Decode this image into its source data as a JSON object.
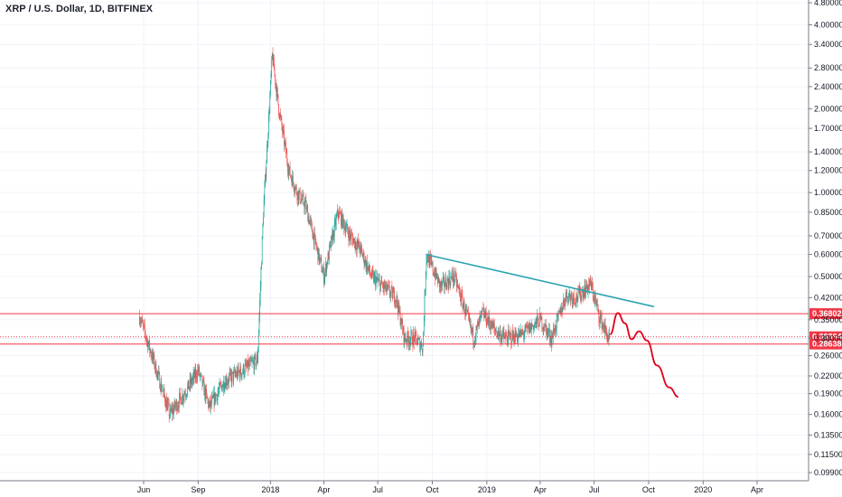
{
  "chart_data": {
    "type": "candlestick",
    "title": "XRP / U.S. Dollar, 1D, BITFINEX",
    "y_scale": "log",
    "y_ticks": [
      "4.80000",
      "4.00000",
      "3.40000",
      "2.80000",
      "2.40000",
      "2.00000",
      "1.70000",
      "1.40000",
      "1.20000",
      "1.00000",
      "0.85000",
      "0.70000",
      "0.60000",
      "0.50000",
      "0.42000",
      "0.35000",
      "0.30000",
      "0.26000",
      "0.22000",
      "0.19000",
      "0.16000",
      "0.13500",
      "0.11500",
      "0.09900"
    ],
    "x_ticks": [
      "Jun",
      "Sep",
      "2018",
      "Apr",
      "Jul",
      "Oct",
      "2019",
      "Apr",
      "Jul",
      "Oct",
      "2020",
      "Apr"
    ],
    "price_levels": [
      {
        "label": "0.36802",
        "value": 0.36802,
        "color": "#f23645"
      },
      {
        "label": "0.30394",
        "value": 0.30394,
        "color": "#f23645"
      },
      {
        "label": "0.28638",
        "value": 0.28638,
        "color": "#f23645"
      }
    ],
    "trendline": {
      "from": [
        "2018-09-20",
        0.6
      ],
      "to": [
        "2019-10-10",
        0.39
      ],
      "color": "#2aa3b0"
    },
    "projection_color": "#e0001b",
    "colors": {
      "up": "#26a69a",
      "down": "#ef5350"
    },
    "monthly_prices": [
      [
        "2017-05-25",
        0.36
      ],
      [
        "2017-06-15",
        0.26
      ],
      [
        "2017-07-15",
        0.16
      ],
      [
        "2017-08-15",
        0.2
      ],
      [
        "2017-09-01",
        0.23
      ],
      [
        "2017-09-20",
        0.17
      ],
      [
        "2017-10-15",
        0.21
      ],
      [
        "2017-11-15",
        0.23
      ],
      [
        "2017-12-10",
        0.25
      ],
      [
        "2017-12-20",
        0.85
      ],
      [
        "2018-01-04",
        3.1
      ],
      [
        "2018-01-15",
        2.0
      ],
      [
        "2018-02-01",
        1.2
      ],
      [
        "2018-02-15",
        1.0
      ],
      [
        "2018-03-01",
        0.9
      ],
      [
        "2018-03-20",
        0.63
      ],
      [
        "2018-04-01",
        0.5
      ],
      [
        "2018-04-25",
        0.85
      ],
      [
        "2018-05-15",
        0.7
      ],
      [
        "2018-06-01",
        0.63
      ],
      [
        "2018-06-20",
        0.5
      ],
      [
        "2018-07-15",
        0.45
      ],
      [
        "2018-08-01",
        0.42
      ],
      [
        "2018-08-15",
        0.3
      ],
      [
        "2018-09-01",
        0.3
      ],
      [
        "2018-09-15",
        0.28
      ],
      [
        "2018-09-21",
        0.6
      ],
      [
        "2018-10-15",
        0.46
      ],
      [
        "2018-11-07",
        0.5
      ],
      [
        "2018-11-25",
        0.38
      ],
      [
        "2018-12-10",
        0.3
      ],
      [
        "2018-12-25",
        0.37
      ],
      [
        "2019-01-15",
        0.32
      ],
      [
        "2019-02-01",
        0.3
      ],
      [
        "2019-03-01",
        0.31
      ],
      [
        "2019-04-01",
        0.35
      ],
      [
        "2019-04-20",
        0.3
      ],
      [
        "2019-05-15",
        0.43
      ],
      [
        "2019-06-01",
        0.42
      ],
      [
        "2019-06-25",
        0.47
      ],
      [
        "2019-07-10",
        0.36
      ],
      [
        "2019-07-25",
        0.3
      ]
    ]
  }
}
